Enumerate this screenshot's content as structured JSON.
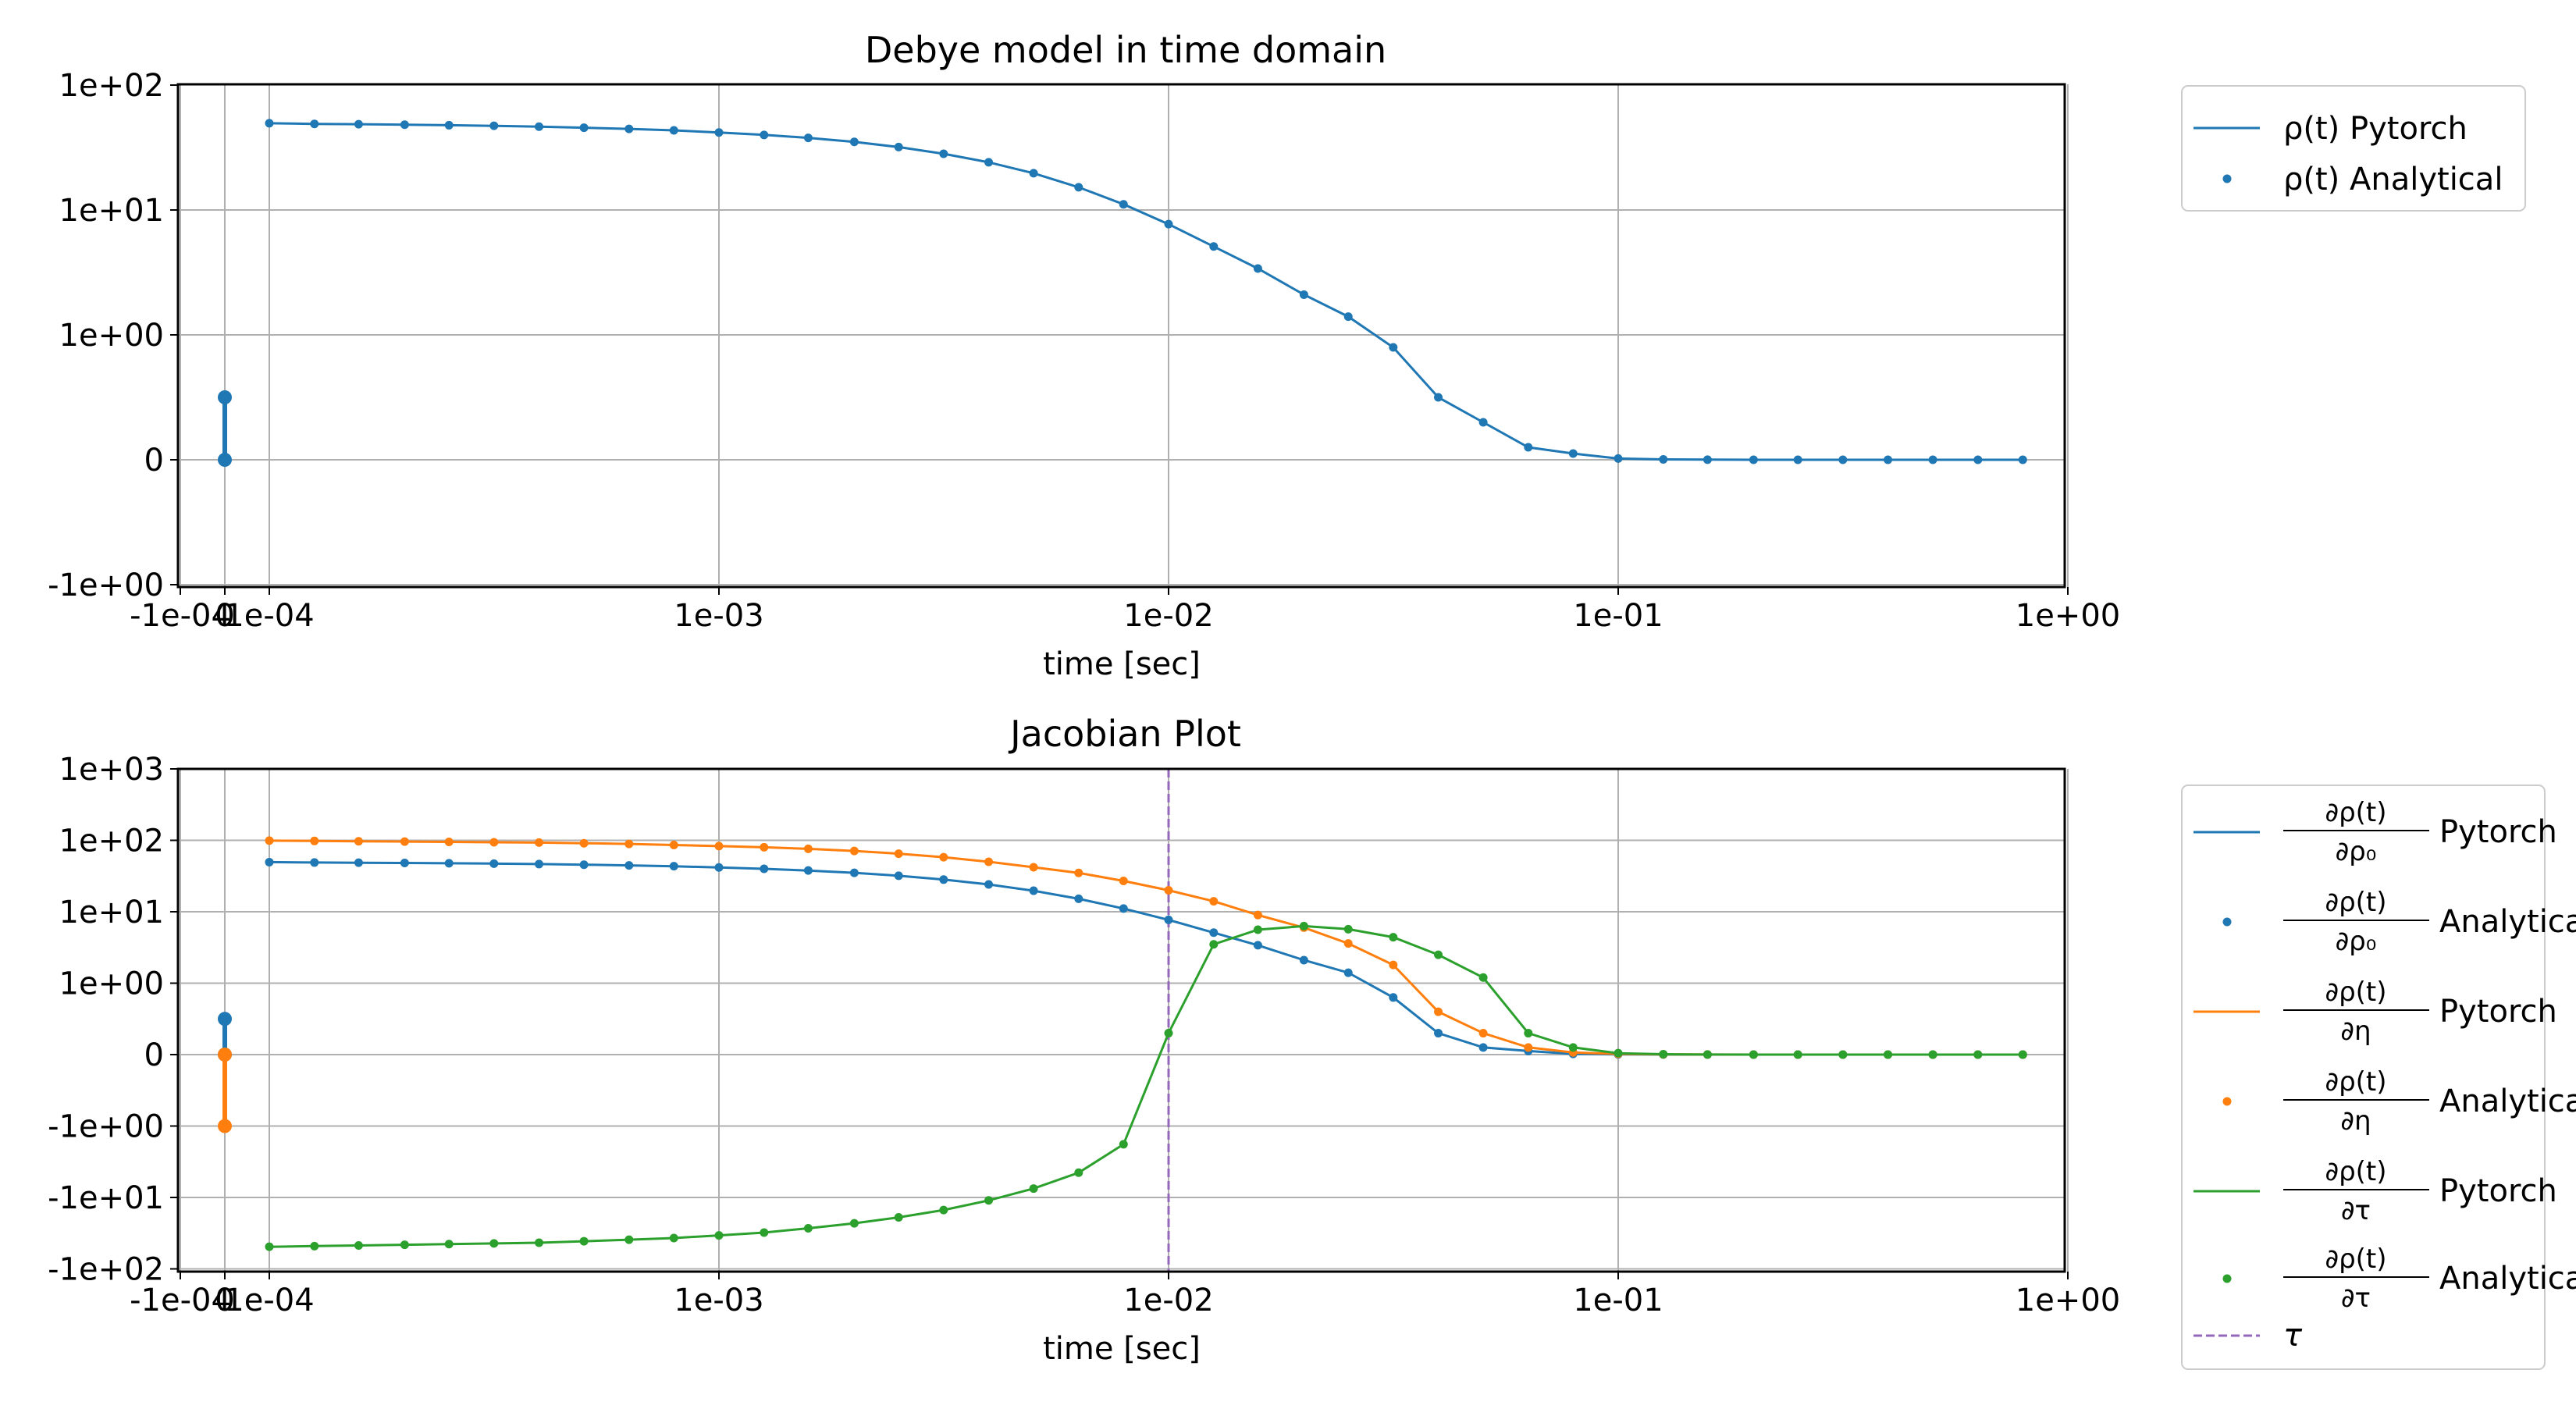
{
  "chart_data": [
    {
      "type": "line",
      "title": "Debye model in time domain",
      "xlabel": "time [sec]",
      "ylabel": "",
      "xscale": "symlog",
      "yscale": "symlog",
      "grid": true,
      "legend_position": "outside-right",
      "x_tick_labels": [
        "-1e-04",
        "1e-04",
        "1e-03",
        "1e-02",
        "1e-01",
        "1e+00"
      ],
      "x_tick_values": [
        -0.0001,
        0.0001,
        0.001,
        0.01,
        0.1,
        1
      ],
      "y_tick_labels": [
        "-1e+00",
        "0",
        "1e+00",
        "1e+01",
        "1e+02"
      ],
      "y_tick_values": [
        -1,
        0,
        1,
        10,
        100
      ],
      "xlim": [
        -0.0001,
        1
      ],
      "ylim": [
        -1,
        100
      ],
      "legend": [
        "ρ(t) Pytorch",
        "ρ(t) Analytical"
      ],
      "stems": [
        {
          "color": "#1f77b4",
          "x": 0,
          "y": [
            0,
            0.5
          ]
        }
      ],
      "series": [
        {
          "name": "ρ(t)",
          "color": "#1f77b4",
          "x": [
            0.0001,
            0.000126,
            0.000158,
            0.0002,
            0.000251,
            0.000316,
            0.000398,
            0.000501,
            0.000631,
            0.000794,
            0.001,
            0.00126,
            0.00158,
            0.002,
            0.00251,
            0.00316,
            0.00398,
            0.00501,
            0.00631,
            0.00794,
            0.01,
            0.0126,
            0.0158,
            0.02,
            0.0251,
            0.0316,
            0.0398,
            0.0501,
            0.0631,
            0.0794,
            0.1,
            0.126,
            0.158,
            0.2,
            0.251,
            0.316,
            0.398,
            0.501,
            0.631,
            0.794
          ],
          "y": [
            49.5,
            48.9,
            48.6,
            48.2,
            47.7,
            47.2,
            46.5,
            45.6,
            44.6,
            43.4,
            41.7,
            39.9,
            37.8,
            35.1,
            31.9,
            28.2,
            24.1,
            19.7,
            15.2,
            11.1,
            7.7,
            5.1,
            3.4,
            2.1,
            1.4,
            0.9,
            0.5,
            0.3,
            0.1,
            0.05,
            0.01,
            0.003,
            0.001,
            0.0003,
            0.0001,
            0,
            0,
            0,
            0,
            0
          ]
        }
      ]
    },
    {
      "type": "line",
      "title": "Jacobian Plot",
      "xlabel": "time [sec]",
      "ylabel": "",
      "xscale": "symlog",
      "yscale": "symlog",
      "grid": true,
      "legend_position": "outside-right",
      "x_tick_labels": [
        "-1e-04",
        "1e-04",
        "1e-03",
        "1e-02",
        "1e-01",
        "1e+00"
      ],
      "x_tick_values": [
        -0.0001,
        0.0001,
        0.001,
        0.01,
        0.1,
        1
      ],
      "y_tick_labels": [
        "-1e+02",
        "-1e+01",
        "-1e+00",
        "0",
        "1e+00",
        "1e+01",
        "1e+02",
        "1e+03"
      ],
      "y_tick_values": [
        -100,
        -10,
        -1,
        0,
        1,
        10,
        100,
        1000
      ],
      "xlim": [
        -0.0001,
        1
      ],
      "ylim": [
        -100,
        1000
      ],
      "legend": [
        {
          "num": "∂ρ(t)",
          "den": "∂ρ₀",
          "suffix": "Pytorch",
          "kind": "line",
          "color": "#1f77b4"
        },
        {
          "num": "∂ρ(t)",
          "den": "∂ρ₀",
          "suffix": "Analytical",
          "kind": "dot",
          "color": "#1f77b4"
        },
        {
          "num": "∂ρ(t)",
          "den": "∂η",
          "suffix": "Pytorch",
          "kind": "line",
          "color": "#ff7f0e"
        },
        {
          "num": "∂ρ(t)",
          "den": "∂η",
          "suffix": "Analytical",
          "kind": "dot",
          "color": "#ff7f0e"
        },
        {
          "num": "∂ρ(t)",
          "den": "∂τ",
          "suffix": "Pytorch",
          "kind": "line",
          "color": "#2ca02c"
        },
        {
          "num": "∂ρ(t)",
          "den": "∂τ",
          "suffix": "Analytical",
          "kind": "dot",
          "color": "#2ca02c"
        },
        {
          "label": "τ",
          "kind": "dash",
          "color": "#9467bd"
        }
      ],
      "vline": {
        "x": 0.01,
        "color": "#9467bd"
      },
      "stems": [
        {
          "color": "#1f77b4",
          "x": 0,
          "y": [
            0,
            0.5
          ]
        },
        {
          "color": "#ff7f0e",
          "x": 0,
          "y": [
            0,
            -1
          ]
        }
      ],
      "x": [
        0.0001,
        0.000126,
        0.000158,
        0.0002,
        0.000251,
        0.000316,
        0.000398,
        0.000501,
        0.000631,
        0.000794,
        0.001,
        0.00126,
        0.00158,
        0.002,
        0.00251,
        0.00316,
        0.00398,
        0.00501,
        0.00631,
        0.00794,
        0.01,
        0.0126,
        0.0158,
        0.02,
        0.0251,
        0.0316,
        0.0398,
        0.0501,
        0.0631,
        0.0794,
        0.1,
        0.126,
        0.158,
        0.2,
        0.251,
        0.316,
        0.398,
        0.501,
        0.631,
        0.794
      ],
      "series": [
        {
          "name": "∂ρ(t)/∂ρ₀",
          "color": "#1f77b4",
          "y": [
            49.5,
            48.9,
            48.6,
            48.2,
            47.7,
            47.2,
            46.5,
            45.6,
            44.6,
            43.4,
            41.7,
            39.9,
            37.8,
            35.1,
            31.9,
            28.2,
            24.1,
            19.7,
            15.2,
            11.1,
            7.7,
            5.1,
            3.4,
            2.1,
            1.4,
            0.8,
            0.3,
            0.1,
            0.05,
            0.01,
            0.003,
            0.001,
            0.0003,
            0.0001,
            0,
            0,
            0,
            0,
            0,
            0
          ]
        },
        {
          "name": "∂ρ(t)/∂η",
          "color": "#ff7f0e",
          "y": [
            99,
            98,
            97,
            96,
            95,
            94,
            93,
            91,
            89,
            86,
            83,
            80,
            76,
            71,
            65,
            58,
            50,
            42,
            35,
            27,
            20,
            14,
            9,
            6,
            3.6,
            1.8,
            0.6,
            0.3,
            0.1,
            0.03,
            0.01,
            0.003,
            0.001,
            0.0003,
            0,
            0,
            0,
            0,
            0,
            0
          ]
        },
        {
          "name": "∂ρ(t)/∂τ",
          "color": "#2ca02c",
          "y": [
            -49,
            -48,
            -47,
            -46,
            -45,
            -44,
            -43,
            -41,
            -39,
            -37,
            -34,
            -31,
            -27,
            -23,
            -19,
            -15,
            -11,
            -7.5,
            -4.5,
            -1.8,
            0.3,
            3.5,
            5.6,
            6.3,
            5.7,
            4.4,
            2.5,
            1.2,
            0.3,
            0.1,
            0.02,
            0.005,
            0.001,
            0.0003,
            0,
            0,
            0,
            0,
            0,
            0
          ]
        }
      ]
    }
  ]
}
